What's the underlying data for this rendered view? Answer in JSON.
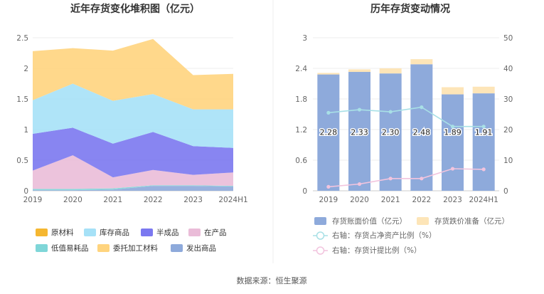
{
  "source": "数据来源：恒生聚源",
  "chart_data": [
    {
      "type": "area",
      "stacked": true,
      "title": "近年存货变化堆积图（亿元）",
      "categories": [
        "2019",
        "2020",
        "2021",
        "2022",
        "2023",
        "2024H1"
      ],
      "ylim": [
        0,
        2.5
      ],
      "y_ticks": [
        "0",
        "0.5",
        "1",
        "1.5",
        "2",
        "2.5"
      ],
      "grid": true,
      "legend_position": "bottom",
      "series": [
        {
          "name": "原材料",
          "color": "#f5b731",
          "values": [
            0.0,
            0.0,
            0.0,
            0.0,
            0.0,
            0.0
          ]
        },
        {
          "name": "库存商品",
          "color": "#a6e1f7",
          "values": [
            0.55,
            0.72,
            0.7,
            0.62,
            0.6,
            0.63
          ]
        },
        {
          "name": "半成品",
          "color": "#7b78f0",
          "values": [
            0.6,
            0.45,
            0.55,
            0.62,
            0.47,
            0.4
          ]
        },
        {
          "name": "在产品",
          "color": "#eabcd8",
          "values": [
            0.3,
            0.55,
            0.18,
            0.25,
            0.17,
            0.22
          ]
        },
        {
          "name": "低值易耗品",
          "color": "#7fd6d8",
          "values": [
            0.02,
            0.02,
            0.02,
            0.01,
            0.01,
            0.01
          ]
        },
        {
          "name": "委托加工材料",
          "color": "#ffd47e",
          "values": [
            0.8,
            0.58,
            0.82,
            0.9,
            0.56,
            0.58
          ]
        },
        {
          "name": "发出商品",
          "color": "#8eaadb",
          "values": [
            0.01,
            0.01,
            0.02,
            0.08,
            0.08,
            0.07
          ]
        }
      ]
    },
    {
      "type": "bar",
      "stacked": true,
      "title": "历年存货变动情况",
      "categories": [
        "2019",
        "2020",
        "2021",
        "2022",
        "2023",
        "2024H1"
      ],
      "ylim": [
        0,
        3
      ],
      "y_ticks": [
        "0",
        "0.6",
        "1.2",
        "1.8",
        "2.4",
        "3"
      ],
      "y2lim": [
        0,
        50
      ],
      "y2_ticks": [
        "0",
        "10",
        "20",
        "30",
        "40",
        "50"
      ],
      "grid": true,
      "legend_position": "bottom",
      "series": [
        {
          "name": "存货账面价值（亿元）",
          "color": "#8eaadb",
          "values": [
            2.28,
            2.33,
            2.3,
            2.48,
            1.89,
            1.91
          ],
          "labels": [
            "2.28",
            "2.33",
            "2.30",
            "2.48",
            "1.89",
            "1.91"
          ]
        },
        {
          "name": "存货跌价准备（亿元）",
          "color": "#fde5b8",
          "values": [
            0.03,
            0.05,
            0.1,
            0.1,
            0.14,
            0.13
          ]
        },
        {
          "name": "右轴：存货占净资产比例（%）",
          "color": "#a8e0e6",
          "axis": "right",
          "type": "line",
          "values": [
            25.5,
            26.5,
            25.8,
            27.3,
            21.0,
            21.0
          ]
        },
        {
          "name": "右轴：存货计提比例（%）",
          "color": "#f2c4de",
          "axis": "right",
          "type": "line",
          "values": [
            1.3,
            2.2,
            4.0,
            4.0,
            7.2,
            7.0
          ]
        }
      ]
    }
  ]
}
